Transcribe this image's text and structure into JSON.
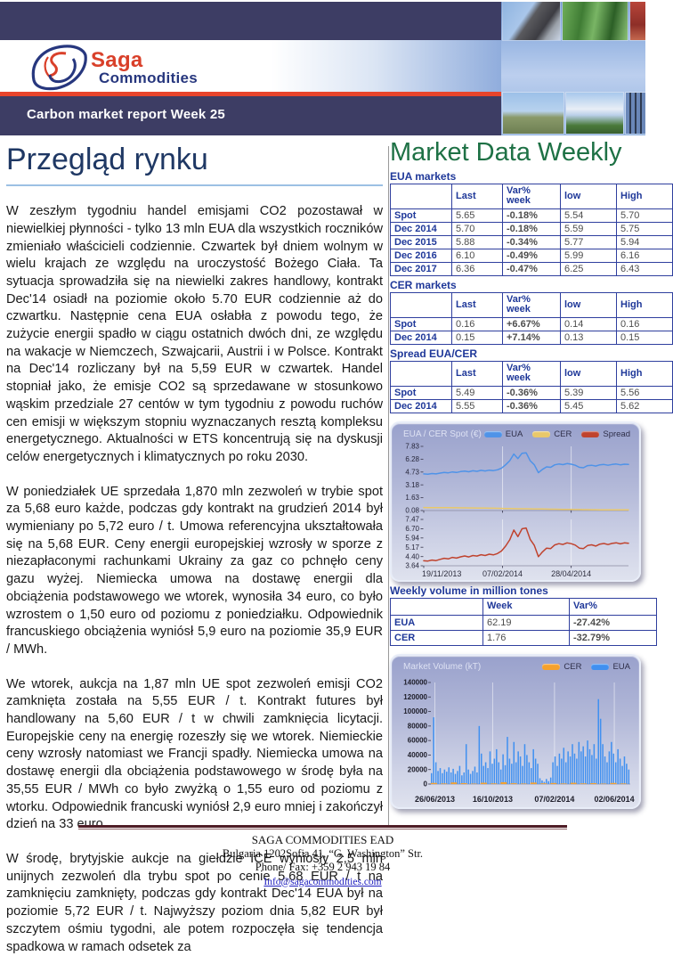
{
  "header": {
    "logo_saga": "Saga",
    "logo_commodities": "Commodities",
    "report_title": "Carbon market report Week 25"
  },
  "left": {
    "title": "Przegląd rynku",
    "paragraphs": [
      "W zeszłym tygodniu handel emisjami CO2 pozostawał w niewielkiej płynności - tylko 13 mln EUA dla wszystkich roczników zmieniało właścicieli codziennie. Czwartek był dniem wolnym w wielu krajach ze względu na uroczystość Bożego Ciała. Ta sytuacja sprowadziła się na niewielki zakres handlowy, kontrakt Dec'14 osiadł na poziomie około 5.70 EUR codziennie aż do czwartku. Następnie cena EUA osłabła z powodu tego, że zużycie energii spadło w ciągu ostatnich dwóch dni, ze względu na wakacje w Niemczech, Szwajcarii, Austrii i w Polsce. Kontrakt na Dec'14 rozliczany był na 5,59 EUR w czwartek. Handel stopniał jako, że emisje CO2 są sprzedawane w stosunkowo wąskim przedziale 27 centów w tym tygodniu z powodu ruchów cen emisji w większym stopniu wyznaczanych resztą kompleksu energetycznego. Aktualności w ETS koncentrują się na dyskusji celów energetycznych i klimatycznych po roku 2030.",
      "W poniedziałek UE sprzedała 1,870 mln zezwoleń w trybie spot za 5,68 euro każde, podczas gdy kontrakt na grudzień 2014 był wymieniany po 5,72 euro / t. Umowa referencyjna ukształtowała się na 5,68 EUR. Ceny energii europejskiej wzrosły w sporze z niezapłaconymi rachunkami Ukrainy za gaz co pchnęło ceny gazu wyżej. Niemiecka umowa na dostawę energii dla obciążenia podstawowego we wtorek, wynosiła 34 euro, co było wzrostem o 1,50 euro od poziomu z poniedziałku. Odpowiednik francuskiego obciążenia wyniósł 5,9 euro na poziomie 35,9 EUR / MWh.",
      "We wtorek, aukcja na 1,87 mln UE spot zezwoleń emisji CO2 zamknięta została na 5,55 EUR / t. Kontrakt futures był handlowany na 5,60 EUR / t w chwili zamknięcia licytacji.  Europejskie ceny na energię rozeszły się we wtorek. Niemieckie ceny wzrosły natomiast we Francji spadły. Niemiecka umowa na dostawę energii dla obciążenia podstawowego w środę była na 35,55 EUR / MWh co było zwyżką o 1,55 euro od poziomu  z wtorku. Odpowiednik francuski wyniósł 2,9 euro mniej i zakończył dzień na 33 euro.",
      "W środę, brytyjskie aukcje na giełdzie ICE wyniosły 2,5 mln unijnych zezwoleń dla trybu spot po cenie 5,68 EUR / t na zamknięciu zamknięty, podczas gdy kontrakt Dec'14 EUA był na poziomie 5,72 EUR / t. Najwyższy poziom dnia 5,82 EUR był szczytem ośmiu tygodni, ale potem rozpoczęła się tendencja spadkowa w ramach odsetek za"
    ]
  },
  "right": {
    "title": "Market Data Weekly",
    "tables": [
      {
        "label": "EUA markets",
        "headers": [
          "",
          "Last",
          "Var% week",
          "low",
          "High"
        ],
        "var_col": 2,
        "rows": [
          [
            "Spot",
            "5.65",
            "-0.18%",
            "5.54",
            "5.70"
          ],
          [
            "Dec 2014",
            "5.70",
            "-0.18%",
            "5.59",
            "5.75"
          ],
          [
            "Dec 2015",
            "5.88",
            "-0.34%",
            "5.77",
            "5.94"
          ],
          [
            "Dec 2016",
            "6.10",
            "-0.49%",
            "5.99",
            "6.16"
          ],
          [
            "Dec 2017",
            "6.36",
            "-0.47%",
            "6.25",
            "6.43"
          ]
        ]
      },
      {
        "label": "CER markets",
        "headers": [
          "",
          "Last",
          "Var% week",
          "low",
          "High"
        ],
        "var_col": 2,
        "rows": [
          [
            "Spot",
            "0.16",
            "+6.67%",
            "0.14",
            "0.16"
          ],
          [
            "Dec 2014",
            "0.15",
            "+7.14%",
            "0.13",
            "0.15"
          ]
        ]
      },
      {
        "label": "Spread EUA/CER",
        "headers": [
          "",
          "Last",
          "Var% week",
          "low",
          "High"
        ],
        "var_col": 2,
        "rows": [
          [
            "Spot",
            "5.49",
            "-0.36%",
            "5.39",
            "5.56"
          ],
          [
            "Dec 2014",
            "5.55",
            "-0.36%",
            "5.45",
            "5.62"
          ]
        ]
      }
    ],
    "volume_table": {
      "label": "Weekly volume in million tones",
      "headers": [
        "",
        "Week",
        "Var%"
      ],
      "var_col": 2,
      "rows": [
        [
          "EUA",
          "62.19",
          "-27.42%"
        ],
        [
          "CER",
          "1.76",
          "-32.79%"
        ]
      ]
    }
  },
  "chart_data": [
    {
      "type": "line",
      "title": "EUA / CER Spot (€)",
      "legend": [
        {
          "name": "EUA",
          "color": "#4f93e8"
        },
        {
          "name": "CER",
          "color": "#e9c86a"
        },
        {
          "name": "Spread",
          "color": "#c0432e"
        }
      ],
      "x_ticks": [
        "19/11/2013",
        "07/02/2014",
        "28/04/2014"
      ],
      "x_tick_pos": [
        0,
        0.385,
        0.72
      ],
      "top_panel": {
        "y_ticks": [
          7.83,
          6.28,
          4.73,
          3.18,
          1.63,
          0.08
        ],
        "range": [
          0.08,
          7.83
        ],
        "series": [
          {
            "name": "EUA",
            "color": "#4f93e8",
            "values": [
              4.5,
              4.47,
              4.55,
              4.5,
              4.6,
              4.68,
              4.63,
              4.74,
              4.68,
              4.78,
              4.85,
              4.76,
              4.88,
              4.82,
              4.93,
              4.86,
              4.96,
              4.9,
              5.0,
              5.2,
              5.6,
              6.1,
              6.9,
              6.35,
              7.0,
              7.05,
              6.1,
              5.6,
              4.65,
              5.05,
              5.35,
              5.3,
              5.6,
              5.7,
              5.62,
              5.75,
              5.68,
              5.55,
              5.3,
              5.25,
              5.5,
              5.55,
              5.45,
              5.6,
              5.65,
              5.55,
              5.65,
              5.7,
              5.6,
              5.68,
              5.65
            ]
          },
          {
            "name": "CER",
            "color": "#e9c86a",
            "values": [
              0.45,
              0.44,
              0.44,
              0.43,
              0.43,
              0.42,
              0.42,
              0.41,
              0.41,
              0.4,
              0.4,
              0.39,
              0.39,
              0.38,
              0.38,
              0.37,
              0.36,
              0.36,
              0.35,
              0.34,
              0.33,
              0.32,
              0.31,
              0.3,
              0.3,
              0.29,
              0.28,
              0.27,
              0.26,
              0.26,
              0.25,
              0.24,
              0.24,
              0.23,
              0.22,
              0.22,
              0.21,
              0.2,
              0.2,
              0.19,
              0.19,
              0.18,
              0.18,
              0.17,
              0.17,
              0.16,
              0.16,
              0.16,
              0.15,
              0.15,
              0.15
            ]
          }
        ]
      },
      "bottom_panel": {
        "y_ticks": [
          7.47,
          6.7,
          5.94,
          5.17,
          4.4,
          3.64
        ],
        "range": [
          3.64,
          7.47
        ],
        "series": [
          {
            "name": "Spread",
            "color": "#c0432e",
            "values": [
              4.05,
              4.03,
              4.11,
              4.07,
              4.17,
              4.26,
              4.21,
              4.33,
              4.27,
              4.38,
              4.45,
              4.37,
              4.49,
              4.44,
              4.55,
              4.49,
              4.6,
              4.54,
              4.65,
              4.86,
              5.27,
              5.78,
              6.59,
              6.05,
              6.7,
              6.76,
              5.82,
              5.33,
              4.39,
              4.79,
              5.1,
              5.06,
              5.36,
              5.47,
              5.4,
              5.53,
              5.47,
              5.35,
              5.1,
              5.06,
              5.31,
              5.37,
              5.27,
              5.43,
              5.48,
              5.39,
              5.49,
              5.54,
              5.45,
              5.53,
              5.5
            ]
          }
        ]
      }
    },
    {
      "type": "bar",
      "title": "Market Volume (kT)",
      "legend": [
        {
          "name": "CER",
          "color": "#f5a12c"
        },
        {
          "name": "EUA",
          "color": "#4090f0"
        }
      ],
      "y_ticks": [
        0,
        20000,
        40000,
        60000,
        80000,
        100000,
        120000,
        140000
      ],
      "ylim": [
        0,
        140000
      ],
      "x_ticks": [
        "26/06/2013",
        "16/10/2013",
        "07/02/2014",
        "02/06/2014"
      ],
      "x_tick_pos": [
        0.02,
        0.31,
        0.62,
        0.92
      ],
      "series": [
        {
          "name": "EUA",
          "color": "#4090f0",
          "values": [
            15000,
            92000,
            30000,
            18000,
            22000,
            15000,
            20000,
            17000,
            23000,
            16000,
            21000,
            14000,
            18000,
            25000,
            12000,
            16000,
            55000,
            20000,
            14000,
            18000,
            24000,
            16000,
            80000,
            42000,
            25000,
            30000,
            22000,
            45000,
            28000,
            35000,
            48000,
            30000,
            20000,
            41000,
            26000,
            65000,
            35000,
            28000,
            58000,
            30000,
            45000,
            38000,
            25000,
            55000,
            40000,
            30000,
            22000,
            48000,
            35000,
            28000,
            8000,
            5000,
            3000,
            7000,
            4000,
            9000,
            30000,
            38000,
            25000,
            42000,
            35000,
            50000,
            30000,
            45000,
            38000,
            55000,
            42000,
            35000,
            58000,
            45000,
            52000,
            38000,
            60000,
            48000,
            40000,
            55000,
            35000,
            117000,
            90000,
            55000,
            38000,
            30000,
            45000,
            58000,
            42000,
            30000,
            48000,
            35000,
            25000,
            38000,
            28000,
            20000
          ]
        },
        {
          "name": "CER",
          "color": "#f5a12c",
          "values": [
            1500,
            800,
            2200,
            1200,
            600,
            1800,
            900,
            2500,
            1100,
            700,
            2000,
            1000,
            1400,
            800,
            1700,
            900,
            1200,
            600,
            1500,
            800
          ]
        }
      ]
    }
  ],
  "footer": {
    "line1": "SAGA COMMODITIES EAD",
    "line2": "Bulgaria 1202Sofia 41, “G. Washington” Str.",
    "line3": "Phone/ Fax: +359 2 943 19 84",
    "link": "Info@sagacommodities.com"
  }
}
